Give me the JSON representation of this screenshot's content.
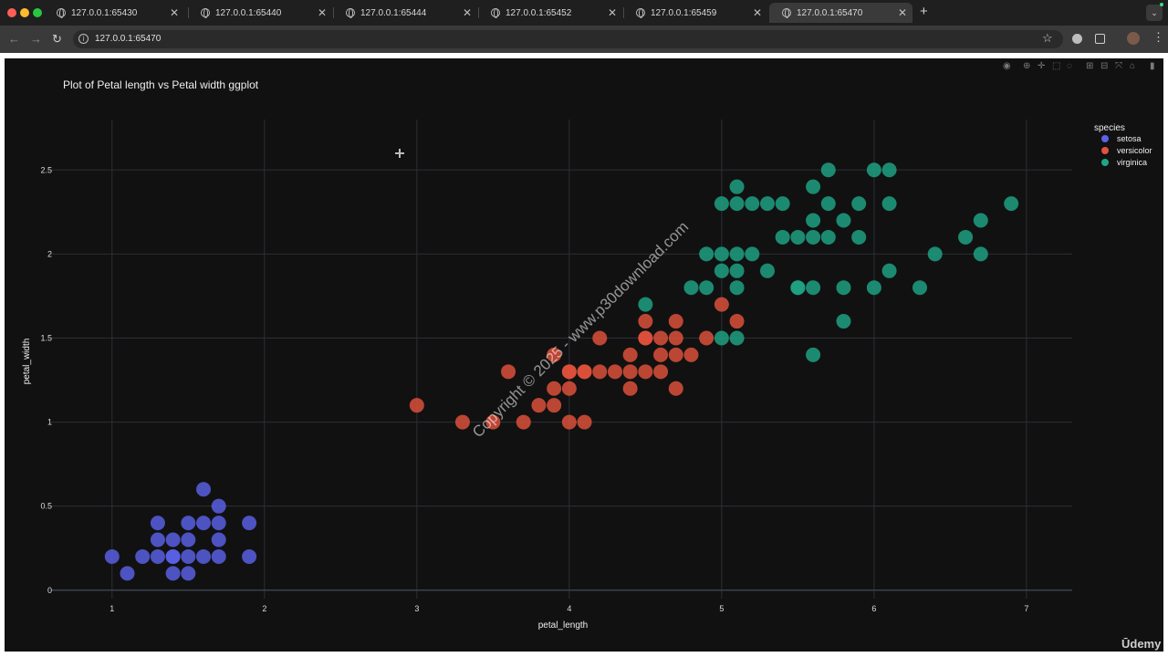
{
  "browser": {
    "tabs": [
      {
        "title": "127.0.0.1:65430"
      },
      {
        "title": "127.0.0.1:65440"
      },
      {
        "title": "127.0.0.1:65444"
      },
      {
        "title": "127.0.0.1:65452"
      },
      {
        "title": "127.0.0.1:65459"
      },
      {
        "title": "127.0.0.1:65470",
        "active": true
      }
    ],
    "new_tab": "+",
    "url": "127.0.0.1:65470",
    "colors": {
      "tabbar": "#1f1f1f",
      "toolbar": "#3a3a3a",
      "active_tab": "#3a3a3a"
    }
  },
  "modebar": {
    "icons": [
      "camera-icon",
      "zoom-icon",
      "pan-icon",
      "box-select-icon",
      "lasso-icon",
      "zoom-in-icon",
      "zoom-out-icon",
      "autoscale-icon",
      "home-icon",
      "plotly-logo-icon"
    ]
  },
  "watermark": {
    "text": "Copyright © 2025 - www.p30download.com",
    "brand": "Ūdemy"
  },
  "chart_data": {
    "type": "scatter",
    "title": "Plot of Petal length vs Petal width ggplot",
    "xlabel": "petal_length",
    "ylabel": "petal_width",
    "xlim": [
      0.6,
      7.3
    ],
    "ylim": [
      -0.05,
      2.8
    ],
    "xticks": [
      "1",
      "2",
      "3",
      "4",
      "5",
      "6",
      "7"
    ],
    "yticks": [
      "0",
      "0.5",
      "1",
      "1.5",
      "2",
      "2.5"
    ],
    "legend": {
      "title": "species",
      "placement": "top-right"
    },
    "background": "#111111",
    "grid": true,
    "series": [
      {
        "name": "setosa",
        "color": "#5a62e8",
        "x": [
          1.0,
          1.1,
          1.2,
          1.3,
          1.3,
          1.3,
          1.4,
          1.4,
          1.4,
          1.4,
          1.5,
          1.5,
          1.5,
          1.5,
          1.6,
          1.6,
          1.6,
          1.7,
          1.7,
          1.7,
          1.7,
          1.9,
          1.9
        ],
        "y": [
          0.2,
          0.1,
          0.2,
          0.2,
          0.3,
          0.4,
          0.1,
          0.2,
          0.3,
          0.2,
          0.2,
          0.1,
          0.4,
          0.3,
          0.2,
          0.4,
          0.6,
          0.2,
          0.3,
          0.4,
          0.5,
          0.2,
          0.4
        ]
      },
      {
        "name": "versicolor",
        "color": "#e2523c",
        "x": [
          3.0,
          3.3,
          3.5,
          3.6,
          3.7,
          3.8,
          3.9,
          3.9,
          3.9,
          4.0,
          4.0,
          4.0,
          4.0,
          4.1,
          4.1,
          4.1,
          4.2,
          4.2,
          4.3,
          4.4,
          4.4,
          4.4,
          4.5,
          4.5,
          4.5,
          4.5,
          4.6,
          4.6,
          4.6,
          4.7,
          4.7,
          4.7,
          4.7,
          4.8,
          4.9,
          5.0,
          5.1
        ],
        "y": [
          1.1,
          1.0,
          1.0,
          1.3,
          1.0,
          1.1,
          1.1,
          1.2,
          1.4,
          1.0,
          1.2,
          1.3,
          1.3,
          1.0,
          1.3,
          1.3,
          1.3,
          1.5,
          1.3,
          1.2,
          1.3,
          1.4,
          1.3,
          1.5,
          1.5,
          1.6,
          1.3,
          1.4,
          1.5,
          1.2,
          1.4,
          1.5,
          1.6,
          1.4,
          1.5,
          1.7,
          1.6
        ]
      },
      {
        "name": "virginica",
        "color": "#1fa585",
        "x": [
          4.5,
          4.8,
          4.9,
          4.9,
          5.0,
          5.0,
          5.0,
          5.0,
          5.1,
          5.1,
          5.1,
          5.1,
          5.1,
          5.1,
          5.2,
          5.2,
          5.3,
          5.3,
          5.4,
          5.4,
          5.5,
          5.5,
          5.5,
          5.6,
          5.6,
          5.6,
          5.6,
          5.6,
          5.7,
          5.7,
          5.7,
          5.8,
          5.8,
          5.8,
          5.9,
          5.9,
          6.0,
          6.0,
          6.1,
          6.1,
          6.1,
          6.3,
          6.4,
          6.6,
          6.7,
          6.7,
          6.9
        ],
        "y": [
          1.7,
          1.8,
          1.8,
          2.0,
          1.5,
          1.9,
          2.0,
          2.3,
          1.5,
          1.8,
          1.9,
          2.0,
          2.3,
          2.4,
          2.0,
          2.3,
          1.9,
          2.3,
          2.1,
          2.3,
          1.8,
          2.1,
          1.8,
          1.4,
          2.1,
          2.2,
          2.4,
          1.8,
          2.1,
          2.3,
          2.5,
          1.6,
          1.8,
          2.2,
          2.1,
          2.3,
          1.8,
          2.5,
          1.9,
          2.3,
          2.5,
          1.8,
          2.0,
          2.1,
          2.0,
          2.2,
          2.3
        ]
      }
    ]
  }
}
